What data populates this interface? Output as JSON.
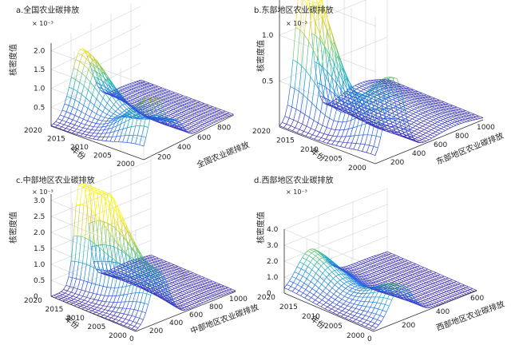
{
  "chart_data": [
    {
      "type": "surface",
      "title": "a.全国农业碳排放",
      "xlabel": "全国农业碳排放",
      "ylabel": "年份",
      "zlabel": "核密度值",
      "multiplier": "× 10⁻³",
      "xlim": [
        0,
        900
      ],
      "xticks": [
        200,
        400,
        600,
        800
      ],
      "ylim": [
        2000,
        2020
      ],
      "yticks": [
        2000,
        2005,
        2010,
        2015,
        2020
      ],
      "zlim": [
        0,
        0.0022
      ],
      "zticks": [
        "0.5",
        "1.0",
        "1.5",
        "2.0"
      ],
      "zticks_values": [
        0.0005,
        0.001,
        0.0015,
        0.002
      ],
      "peaks": [
        {
          "year": 2000,
          "x": 130,
          "density": 0.00145,
          "width": 110
        },
        {
          "year": 2000,
          "x": 330,
          "density": 0.00055,
          "width": 90
        },
        {
          "year": 2020,
          "x": 300,
          "density": 0.00165,
          "width": 140
        }
      ]
    },
    {
      "type": "surface",
      "title": "b.东部地区农业碳排放",
      "xlabel": "东部地区农业碳排放",
      "ylabel": "年份",
      "zlabel": "核密度值",
      "multiplier": "× 10⁻³",
      "xlim": [
        0,
        1000
      ],
      "xticks": [
        200,
        400,
        600,
        800,
        1000
      ],
      "ylim": [
        2000,
        2020
      ],
      "yticks": [
        2000,
        2005,
        2010,
        2015,
        2020
      ],
      "zlim": [
        0,
        0.0016
      ],
      "zticks": [
        "0.5",
        "1.0",
        "1.5"
      ],
      "zticks_values": [
        0.0005,
        0.001,
        0.0015
      ],
      "peaks": [
        {
          "year": 2000,
          "x": 180,
          "density": 0.00085,
          "width": 120
        },
        {
          "year": 2020,
          "x": 220,
          "density": 0.00165,
          "width": 100
        }
      ]
    },
    {
      "type": "surface",
      "title": "c.中部地区农业碳排放",
      "xlabel": "中部地区农业碳排放",
      "ylabel": "年份",
      "zlabel": "核密度值",
      "multiplier": "× 10⁻³",
      "xlim": [
        0,
        1000
      ],
      "xticks": [
        0,
        200,
        400,
        600,
        800,
        1000
      ],
      "ylim": [
        2000,
        2020
      ],
      "yticks": [
        2000,
        2005,
        2010,
        2015,
        2020
      ],
      "zlim": [
        0,
        0.0032
      ],
      "zticks": [
        "0",
        "0.5",
        "1.0",
        "1.5",
        "2.0",
        "2.5",
        "3.0"
      ],
      "zticks_values": [
        0,
        0.0005,
        0.001,
        0.0015,
        0.002,
        0.0025,
        0.003
      ],
      "peaks": [
        {
          "year": 2000,
          "x": 230,
          "density": 0.00145,
          "width": 120
        },
        {
          "year": 2012,
          "x": 320,
          "density": 0.0017,
          "width": 110
        },
        {
          "year": 2020,
          "x": 300,
          "density": 0.0031,
          "width": 80
        }
      ]
    },
    {
      "type": "surface",
      "title": "d.西部地区农业碳排放",
      "xlabel": "西部地区农业碳排放",
      "ylabel": "年份",
      "zlabel": "核密度值",
      "multiplier": "× 10⁻³",
      "xlim": [
        0,
        600
      ],
      "xticks": [
        0,
        200,
        400,
        600
      ],
      "ylim": [
        2000,
        2020
      ],
      "yticks": [
        2000,
        2005,
        2010,
        2015,
        2020
      ],
      "zlim": [
        0,
        0.004
      ],
      "zticks": [
        "0",
        "1.0",
        "2.0",
        "3.0",
        "4.0"
      ],
      "zticks_values": [
        0,
        0.001,
        0.002,
        0.003,
        0.004
      ],
      "peaks": [
        {
          "year": 2000,
          "x": 160,
          "density": 0.0022,
          "width": 90
        },
        {
          "year": 2020,
          "x": 150,
          "density": 0.0021,
          "width": 110
        }
      ]
    }
  ]
}
